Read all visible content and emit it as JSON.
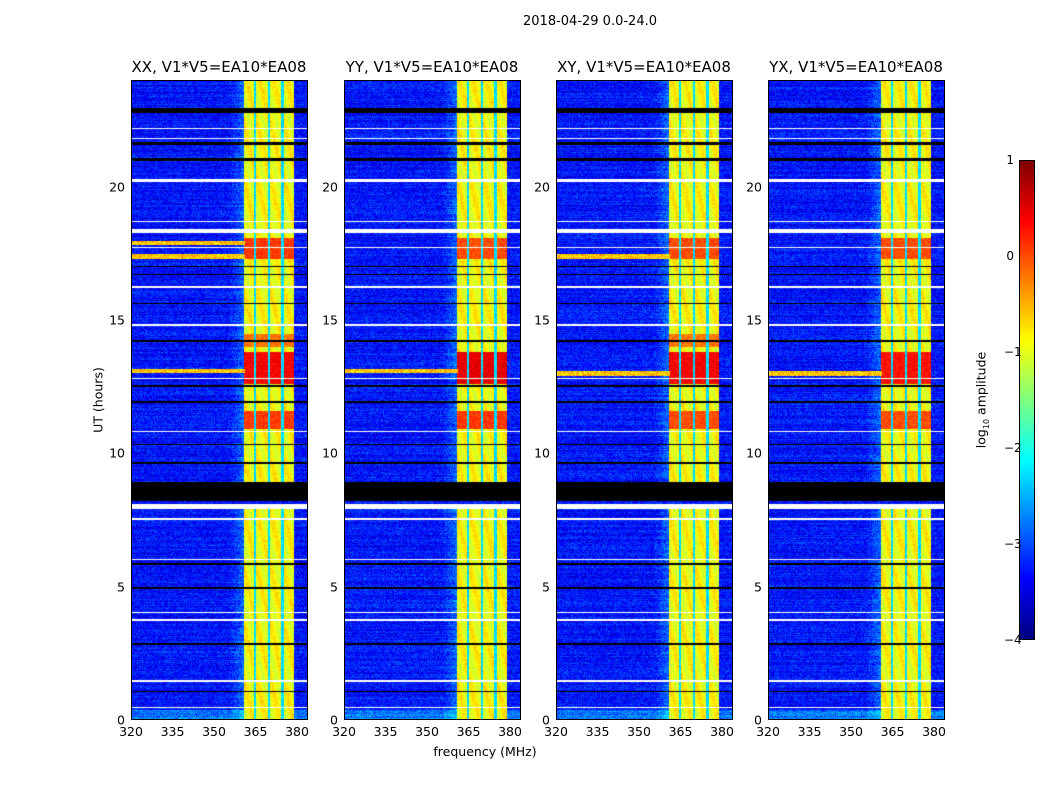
{
  "suptitle": "2018-04-29 0.0-24.0",
  "chart_data": {
    "type": "heatmap",
    "xlabel": "frequency (MHz)",
    "ylabel": "UT (hours)",
    "xlim": [
      320,
      384
    ],
    "ylim": [
      0,
      24
    ],
    "xticks": [
      "320",
      "335",
      "350",
      "365",
      "380"
    ],
    "yticks": [
      "0",
      "5",
      "10",
      "15",
      "20"
    ],
    "colorbar": {
      "label_prefix": "log",
      "label_sub": "10",
      "label_suffix": " amplitude",
      "range": [
        -4,
        1
      ],
      "ticks": [
        "1",
        "0",
        "−1",
        "−2",
        "−3",
        "−4"
      ],
      "colormap": "jet"
    },
    "panels": [
      {
        "title": "XX, V1*V5=EA10*EA08",
        "band_peak": [
          [
            12.6,
            13.8,
            0.4
          ],
          [
            10.9,
            11.6,
            0.1
          ],
          [
            17.3,
            18.1,
            0.1
          ],
          [
            14.0,
            14.5,
            -0.2
          ]
        ],
        "line_rfi_hours": [
          13.1,
          17.9,
          17.4
        ]
      },
      {
        "title": "YY, V1*V5=EA10*EA08",
        "band_peak": [
          [
            12.6,
            13.8,
            0.5
          ],
          [
            10.9,
            11.6,
            0.1
          ],
          [
            17.3,
            18.1,
            0.0
          ]
        ],
        "line_rfi_hours": [
          13.1
        ]
      },
      {
        "title": "XY, V1*V5=EA10*EA08",
        "band_peak": [
          [
            12.6,
            13.8,
            0.4
          ],
          [
            10.9,
            11.6,
            0.0
          ],
          [
            17.3,
            18.1,
            0.0
          ],
          [
            14.0,
            14.5,
            -0.2
          ]
        ],
        "line_rfi_hours": [
          13.0,
          17.4
        ]
      },
      {
        "title": "YX, V1*V5=EA10*EA08",
        "band_peak": [
          [
            12.6,
            13.8,
            0.3
          ],
          [
            10.9,
            11.6,
            0.0
          ],
          [
            17.3,
            18.1,
            0.0
          ]
        ],
        "line_rfi_hours": [
          13.0
        ]
      }
    ],
    "rfi_band_mhz": [
      360.5,
      378.5
    ],
    "rfi_band_gaps_mhz": [
      364.5,
      369.5,
      374.5
    ],
    "flagged_black_hours": [
      [
        8.2,
        8.9
      ],
      [
        22.8,
        23.0
      ],
      [
        21.0,
        21.1
      ],
      [
        21.6,
        21.7
      ],
      [
        17.0,
        17.05
      ],
      [
        12.5,
        12.55
      ],
      [
        10.3,
        10.35
      ],
      [
        9.6,
        9.65
      ],
      [
        5.8,
        5.85
      ],
      [
        4.9,
        4.95
      ],
      [
        2.8,
        2.85
      ],
      [
        1.0,
        1.05
      ],
      [
        15.6,
        15.65
      ],
      [
        16.7,
        16.75
      ],
      [
        14.2,
        14.25
      ],
      [
        11.9,
        11.95
      ]
    ],
    "flagged_white_hours": [
      [
        20.2,
        20.3
      ],
      [
        18.3,
        18.45
      ],
      [
        16.2,
        16.3
      ],
      [
        14.8,
        14.85
      ],
      [
        12.8,
        12.82
      ],
      [
        10.8,
        10.85
      ],
      [
        7.9,
        8.1
      ],
      [
        7.5,
        7.55
      ],
      [
        3.7,
        3.75
      ],
      [
        1.4,
        1.47
      ],
      [
        0.4,
        0.45
      ],
      [
        22.2,
        22.25
      ],
      [
        21.8,
        21.85
      ],
      [
        18.7,
        18.75
      ],
      [
        17.7,
        17.75
      ],
      [
        13.5,
        13.52
      ],
      [
        6.0,
        6.03
      ],
      [
        4.0,
        4.03
      ]
    ],
    "band_dropout_hours": [
      8.0,
      8.2
    ],
    "background_level": -3.3
  }
}
